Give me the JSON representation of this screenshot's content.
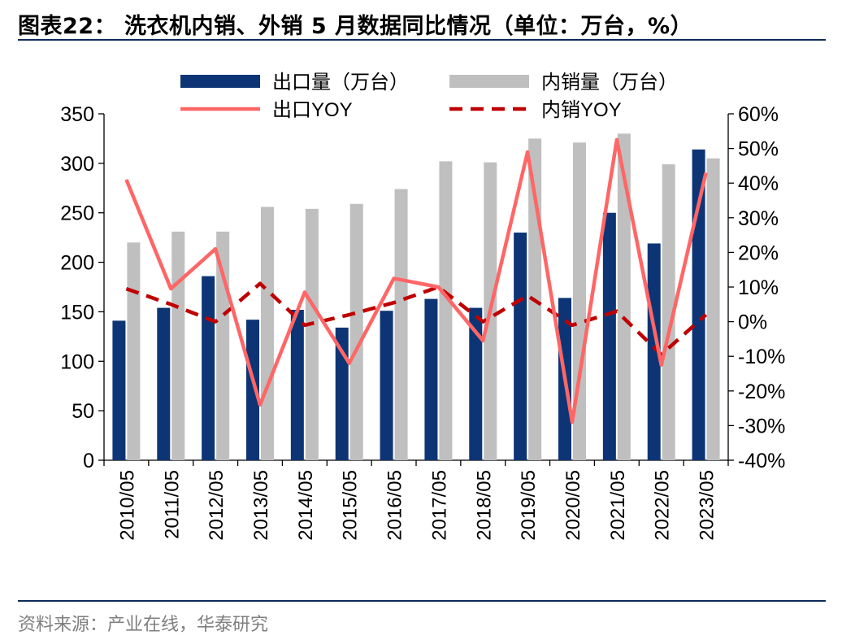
{
  "header": {
    "title": "图表22：  洗衣机内销、外销 5 月数据同比情况（单位：万台，%）"
  },
  "footer": {
    "source": "资料来源：产业在线，华泰研究"
  },
  "colors": {
    "export_bar": "#0d3575",
    "domestic_bar": "#bfbfbf",
    "export_yoy": "#ff6666",
    "domestic_yoy": "#c00000",
    "rule": "#0d2c5c"
  },
  "chart_data": {
    "type": "bar",
    "categories": [
      "2010/05",
      "2011/05",
      "2012/05",
      "2013/05",
      "2014/05",
      "2015/05",
      "2016/05",
      "2017/05",
      "2018/05",
      "2019/05",
      "2020/05",
      "2021/05",
      "2022/05",
      "2023/05"
    ],
    "series": [
      {
        "name": "出口量（万台）",
        "type": "bar",
        "axis": "left",
        "values": [
          141,
          154,
          186,
          142,
          152,
          134,
          151,
          163,
          154,
          230,
          164,
          250,
          219,
          314
        ]
      },
      {
        "name": "内销量（万台）",
        "type": "bar",
        "axis": "left",
        "values": [
          220,
          231,
          231,
          256,
          254,
          259,
          274,
          302,
          301,
          325,
          321,
          330,
          299,
          305
        ]
      },
      {
        "name": "出口YOY",
        "type": "line",
        "style": "solid",
        "axis": "right",
        "values": [
          41,
          9.5,
          21,
          -24,
          8.5,
          -12,
          12.5,
          10,
          -5.5,
          49,
          -29,
          52.5,
          -12.5,
          43
        ]
      },
      {
        "name": "内销YOY",
        "type": "line",
        "style": "dashed",
        "axis": "right",
        "values": [
          9.5,
          5,
          0,
          11,
          -1,
          2,
          5.5,
          10,
          0,
          7.5,
          -1,
          3,
          -9.5,
          2
        ]
      }
    ],
    "y_left": {
      "range": [
        0,
        350
      ],
      "ticks": [
        "0",
        "50",
        "100",
        "150",
        "200",
        "250",
        "300",
        "350"
      ]
    },
    "y_right": {
      "range": [
        -40,
        60
      ],
      "ticks": [
        "-40%",
        "-30%",
        "-20%",
        "-10%",
        "0%",
        "10%",
        "20%",
        "30%",
        "40%",
        "50%",
        "60%"
      ]
    },
    "legend": {
      "position": "top",
      "items": [
        "出口量（万台）",
        "内销量（万台）",
        "出口YOY",
        "内销YOY"
      ]
    },
    "grid": false
  }
}
